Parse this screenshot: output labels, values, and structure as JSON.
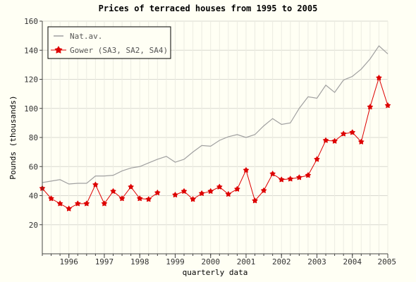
{
  "chart_data": {
    "type": "line",
    "title": "Prices of terraced houses from 1995 to 2005",
    "xlabel": "quarterly data",
    "ylabel": "Pounds (thousands)",
    "ylim": [
      0,
      160
    ],
    "yticks": [
      20,
      40,
      60,
      80,
      100,
      120,
      140,
      160
    ],
    "xlim": [
      1995.25,
      2005.0
    ],
    "xticks": [
      {
        "value": 1996,
        "label": "1996"
      },
      {
        "value": 1997,
        "label": "1997"
      },
      {
        "value": 1998,
        "label": "1998"
      },
      {
        "value": 1999,
        "label": "1999"
      },
      {
        "value": 2000,
        "label": "2000"
      },
      {
        "value": 2001,
        "label": "2001"
      },
      {
        "value": 2002,
        "label": "2002"
      },
      {
        "value": 2003,
        "label": "2003"
      },
      {
        "value": 2004,
        "label": "2004"
      },
      {
        "value": 2005,
        "label": "2005"
      }
    ],
    "grid": true,
    "legend": "top-left",
    "x": [
      1995.25,
      1995.5,
      1995.75,
      1996.0,
      1996.25,
      1996.5,
      1996.75,
      1997.0,
      1997.25,
      1997.5,
      1997.75,
      1998.0,
      1998.25,
      1998.5,
      1998.75,
      1999.0,
      1999.25,
      1999.5,
      1999.75,
      2000.0,
      2000.25,
      2000.5,
      2000.75,
      2001.0,
      2001.25,
      2001.5,
      2001.75,
      2002.0,
      2002.25,
      2002.5,
      2002.75,
      2003.0,
      2003.25,
      2003.5,
      2003.75,
      2004.0,
      2004.25,
      2004.5,
      2004.75,
      2005.0
    ],
    "series": [
      {
        "name": "Nat.av.",
        "color": "#a0a0a0",
        "marker": "none",
        "values": [
          49,
          50,
          51,
          48,
          48.5,
          48.5,
          53.5,
          53.5,
          54,
          57,
          59,
          60,
          62.5,
          65,
          67,
          63,
          65,
          70,
          74.5,
          74,
          78,
          80.5,
          82,
          80,
          82,
          88,
          93,
          89,
          90,
          100,
          108,
          107,
          116,
          111,
          119.5,
          122,
          127,
          134,
          143,
          137.5
        ]
      },
      {
        "name": "Gower (SA3, SA2, SA4)",
        "color": "#dd0000",
        "marker": "star",
        "values": [
          45,
          38,
          34.5,
          31,
          34.5,
          34.5,
          47.5,
          34.5,
          43,
          38,
          46,
          38,
          37.5,
          42,
          null,
          40.5,
          43,
          37.5,
          41.5,
          43,
          46,
          41,
          44.5,
          57.5,
          36.5,
          43.5,
          55,
          51,
          51.5,
          52.5,
          54,
          65,
          78,
          77.5,
          82.5,
          83.5,
          77,
          101,
          121,
          102
        ]
      }
    ]
  }
}
